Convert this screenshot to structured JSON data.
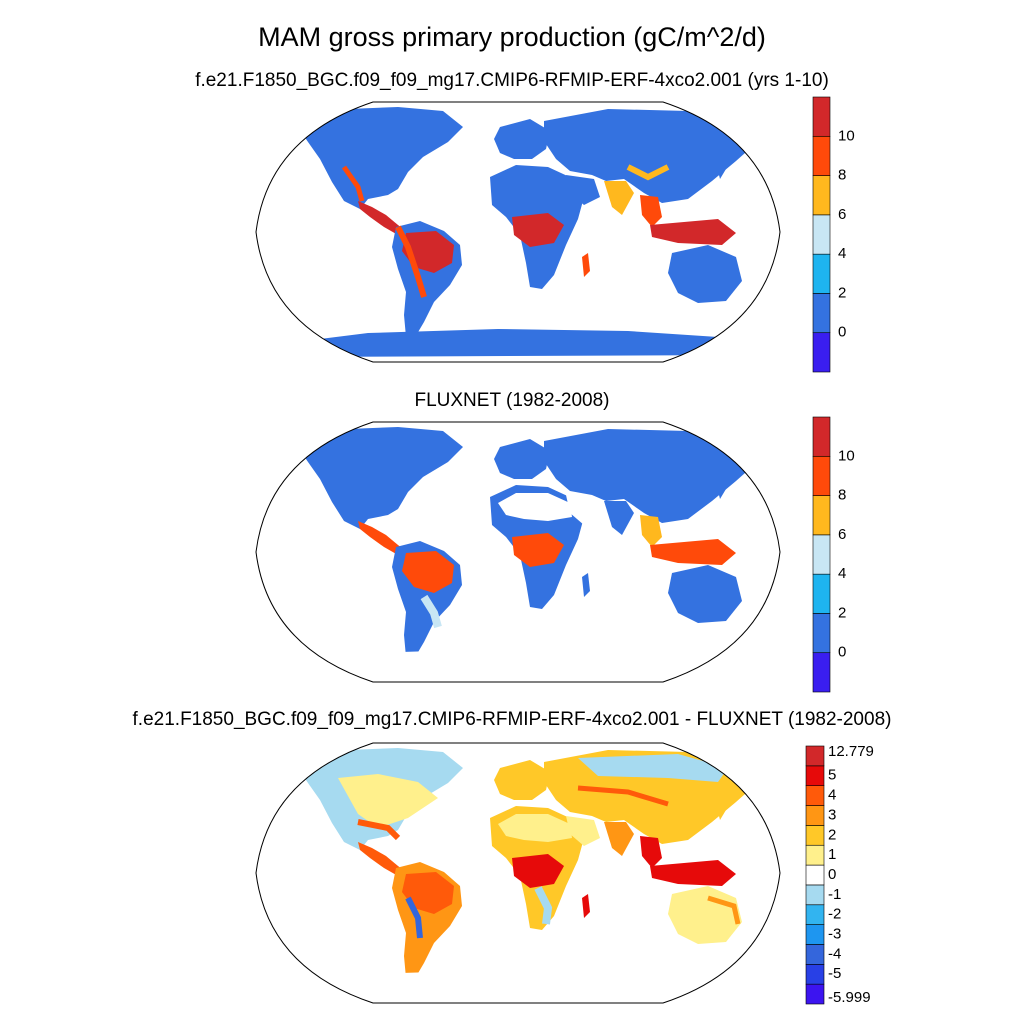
{
  "title": "MAM gross primary production (gC/m^2/d)",
  "panels": [
    {
      "id": "model",
      "subtitle": "f.e21.F1850_BGC.f09_f09_mg17.CMIP6-RFMIP-ERF-4xco2.001 (yrs 1-10)",
      "colorbar": {
        "labels": [
          "0",
          "2",
          "4",
          "6",
          "8",
          "10"
        ],
        "colors": [
          "#3a1ef0",
          "#3472e0",
          "#1eb4f0",
          "#c8e6f4",
          "#ffb81e",
          "#ff4a0a",
          "#d2282a"
        ]
      }
    },
    {
      "id": "obs",
      "subtitle": "FLUXNET (1982-2008)",
      "colorbar": {
        "labels": [
          "0",
          "2",
          "4",
          "6",
          "8",
          "10"
        ],
        "colors": [
          "#3a1ef0",
          "#3472e0",
          "#1eb4f0",
          "#c8e6f4",
          "#ffb81e",
          "#ff4a0a",
          "#d2282a"
        ]
      }
    },
    {
      "id": "difference",
      "subtitle": "f.e21.F1850_BGC.f09_f09_mg17.CMIP6-RFMIP-ERF-4xco2.001 - FLUXNET (1982-2008)",
      "colorbar": {
        "labels": [
          "-5.999",
          "-5",
          "-4",
          "-3",
          "-2",
          "-1",
          "0",
          "1",
          "2",
          "3",
          "4",
          "5",
          "12.779"
        ],
        "colors": [
          "#3c14f0",
          "#2840e6",
          "#3466dc",
          "#1e96f0",
          "#32b4f0",
          "#a6daf0",
          "#ffffff",
          "#fff08c",
          "#ffc828",
          "#ff9614",
          "#ff5a0a",
          "#e60a0a",
          "#d2282a"
        ]
      }
    }
  ]
}
